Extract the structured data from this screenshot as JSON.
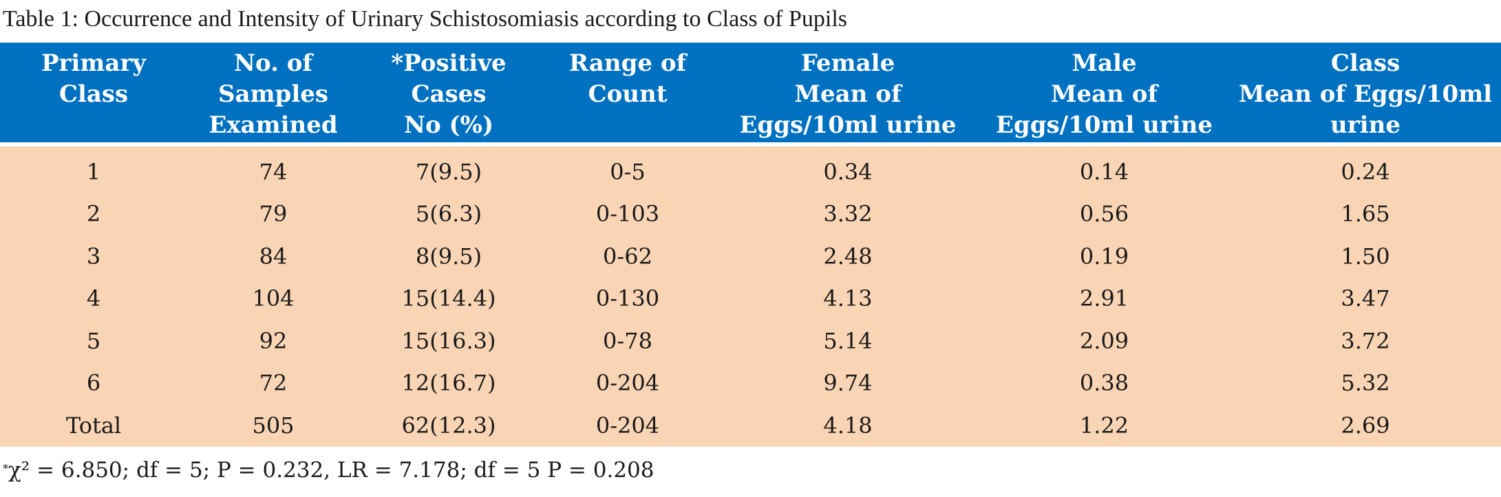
{
  "caption": "Table 1: Occurrence and Intensity of Urinary Schistosomiasis according to Class of Pupils",
  "columns": [
    [
      "Primary",
      "Class"
    ],
    [
      "No. of",
      "Samples",
      "Examined"
    ],
    [
      "*Positive",
      "Cases",
      "No (%)"
    ],
    [
      "Range of",
      "Count"
    ],
    [
      "Female",
      "Mean of",
      "Eggs/10ml urine"
    ],
    [
      "Male",
      "Mean of",
      "Eggs/10ml urine"
    ],
    [
      "Class",
      "Mean of Eggs/10ml",
      "urine"
    ]
  ],
  "rows": [
    [
      "1",
      "74",
      "7(9.5)",
      "0-5",
      "0.34",
      "0.14",
      "0.24"
    ],
    [
      "2",
      "79",
      "5(6.3)",
      "0-103",
      "3.32",
      "0.56",
      "1.65"
    ],
    [
      "3",
      "84",
      "8(9.5)",
      "0-62",
      "2.48",
      "0.19",
      "1.50"
    ],
    [
      "4",
      "104",
      "15(14.4)",
      "0-130",
      "4.13",
      "2.91",
      "3.47"
    ],
    [
      "5",
      "92",
      "15(16.3)",
      "0-78",
      "5.14",
      "2.09",
      "3.72"
    ],
    [
      "6",
      "72",
      "12(16.7)",
      "0-204",
      "9.74",
      "0.38",
      "5.32"
    ],
    [
      "Total",
      "505",
      "62(12.3)",
      "0-204",
      "4.18",
      "1.22",
      "2.69"
    ]
  ],
  "footnote": {
    "marker": "*",
    "text": "χ² = 6.850; df = 5; P = 0.232, LR = 7.178; df = 5 P = 0.208"
  },
  "colors": {
    "header_bg": "#0070c0",
    "row_bg": "#fad5b5"
  }
}
